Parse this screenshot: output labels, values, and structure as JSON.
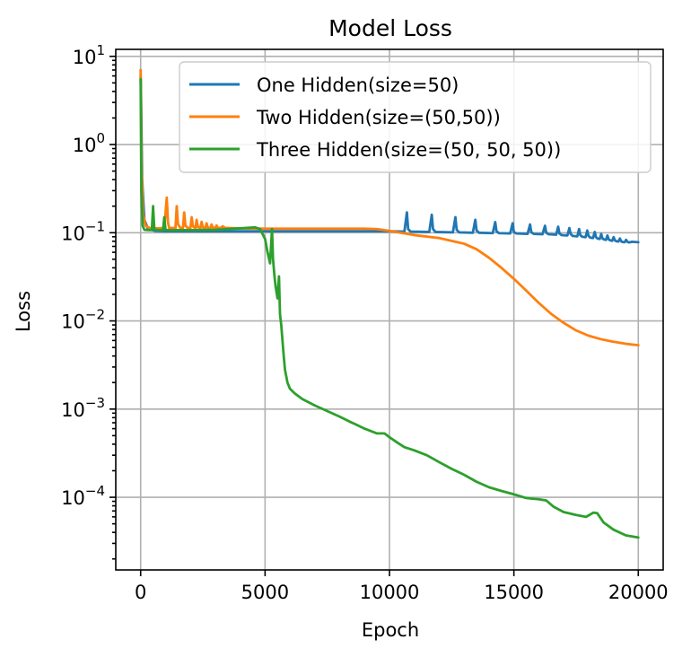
{
  "chart_data": {
    "type": "line",
    "title": "Model Loss",
    "xlabel": "Epoch",
    "ylabel": "Loss",
    "yscale": "log",
    "xlim": [
      -1000,
      21000
    ],
    "ylim": [
      1.5e-05,
      12
    ],
    "x_ticks": [
      0,
      5000,
      10000,
      15000,
      20000
    ],
    "x_tick_labels": [
      "0",
      "5000",
      "10000",
      "15000",
      "20000"
    ],
    "y_ticks": [
      10,
      1,
      0.1,
      0.01,
      0.001,
      0.0001
    ],
    "y_tick_labels": [
      {
        "base": "10",
        "exp": "1"
      },
      {
        "base": "10",
        "exp": "0"
      },
      {
        "base": "10",
        "exp": "−1"
      },
      {
        "base": "10",
        "exp": "−2"
      },
      {
        "base": "10",
        "exp": "−3"
      },
      {
        "base": "10",
        "exp": "−4"
      }
    ],
    "grid": true,
    "legend_position": "top-right",
    "series": [
      {
        "name": "One Hidden(size=50)",
        "color": "#1f77b4",
        "x": [
          0,
          20,
          60,
          150,
          300,
          600,
          1000,
          2000,
          3000,
          4000,
          5000,
          6000,
          7000,
          8000,
          9000,
          10000,
          10600,
          10700,
          10750,
          10850,
          11600,
          11700,
          11750,
          11850,
          12550,
          12650,
          12700,
          12800,
          13350,
          13450,
          13500,
          13600,
          14150,
          14250,
          14300,
          14400,
          14850,
          14950,
          15000,
          15100,
          15550,
          15650,
          15700,
          15800,
          16150,
          16250,
          16300,
          16400,
          16700,
          16780,
          16830,
          16920,
          17150,
          17230,
          17280,
          17360,
          17550,
          17620,
          17670,
          17740,
          17880,
          17950,
          18000,
          18070,
          18180,
          18250,
          18300,
          18360,
          18450,
          18510,
          18560,
          18620,
          18700,
          18760,
          18810,
          18870,
          18950,
          19010,
          19060,
          19120,
          19200,
          19260,
          19310,
          19370,
          19450,
          19510,
          19560,
          19620,
          19750,
          20000
        ],
        "y": [
          6.0,
          3.0,
          0.4,
          0.14,
          0.11,
          0.105,
          0.104,
          0.104,
          0.104,
          0.104,
          0.104,
          0.104,
          0.104,
          0.104,
          0.104,
          0.104,
          0.103,
          0.17,
          0.11,
          0.103,
          0.102,
          0.16,
          0.11,
          0.102,
          0.101,
          0.15,
          0.108,
          0.101,
          0.1,
          0.14,
          0.106,
          0.1,
          0.099,
          0.132,
          0.104,
          0.099,
          0.098,
          0.128,
          0.102,
          0.098,
          0.097,
          0.124,
          0.101,
          0.097,
          0.096,
          0.12,
          0.1,
          0.096,
          0.095,
          0.117,
          0.098,
          0.094,
          0.093,
          0.113,
          0.097,
          0.092,
          0.091,
          0.11,
          0.094,
          0.09,
          0.089,
          0.106,
          0.092,
          0.088,
          0.087,
          0.102,
          0.089,
          0.086,
          0.085,
          0.097,
          0.086,
          0.084,
          0.083,
          0.093,
          0.084,
          0.082,
          0.081,
          0.089,
          0.082,
          0.08,
          0.0795,
          0.086,
          0.08,
          0.0785,
          0.078,
          0.083,
          0.079,
          0.0775,
          0.079,
          0.078
        ]
      },
      {
        "name": "Two Hidden(size=(50,50))",
        "color": "#ff7f0e",
        "x": [
          0,
          10,
          40,
          100,
          200,
          400,
          700,
          950,
          1050,
          1100,
          1150,
          1250,
          1400,
          1450,
          1500,
          1600,
          1700,
          1750,
          1800,
          1900,
          2000,
          2050,
          2100,
          2200,
          2250,
          2300,
          2400,
          2450,
          2500,
          2600,
          2650,
          2700,
          2800,
          2850,
          2900,
          3000,
          3050,
          3100,
          3200,
          3300,
          3400,
          3500,
          4000,
          5000,
          6000,
          7000,
          8000,
          9000,
          9500,
          10000,
          11000,
          12000,
          13000,
          13500,
          14000,
          14500,
          15000,
          15500,
          16000,
          16500,
          17000,
          17500,
          18000,
          18500,
          19000,
          19500,
          20000
        ],
        "y": [
          7.0,
          3.5,
          0.5,
          0.16,
          0.12,
          0.112,
          0.112,
          0.113,
          0.25,
          0.13,
          0.113,
          0.113,
          0.113,
          0.2,
          0.125,
          0.113,
          0.113,
          0.17,
          0.12,
          0.113,
          0.113,
          0.15,
          0.118,
          0.113,
          0.14,
          0.116,
          0.113,
          0.133,
          0.115,
          0.113,
          0.128,
          0.114,
          0.113,
          0.124,
          0.114,
          0.113,
          0.121,
          0.113,
          0.113,
          0.118,
          0.113,
          0.113,
          0.112,
          0.111,
          0.111,
          0.111,
          0.111,
          0.111,
          0.11,
          0.105,
          0.094,
          0.087,
          0.075,
          0.065,
          0.052,
          0.04,
          0.03,
          0.022,
          0.016,
          0.012,
          0.0095,
          0.0078,
          0.0068,
          0.0062,
          0.0058,
          0.0055,
          0.0053
        ]
      },
      {
        "name": "Three Hidden(size=(50, 50, 50))",
        "color": "#2ca02c",
        "x": [
          0,
          10,
          30,
          80,
          150,
          300,
          450,
          500,
          550,
          650,
          900,
          950,
          1000,
          1100,
          1500,
          2000,
          3000,
          4000,
          4600,
          4800,
          5000,
          5100,
          5200,
          5280,
          5320,
          5380,
          5420,
          5500,
          5560,
          5600,
          5650,
          5700,
          5750,
          5800,
          5900,
          6000,
          6200,
          6500,
          7000,
          7500,
          8000,
          8400,
          8600,
          9000,
          9500,
          9800,
          10000,
          10300,
          10600,
          11000,
          11500,
          12000,
          12500,
          13000,
          13500,
          14000,
          14500,
          15000,
          15500,
          15800,
          16000,
          16300,
          16600,
          17000,
          17500,
          17900,
          18200,
          18350,
          18600,
          19000,
          19500,
          20000
        ],
        "y": [
          5.5,
          2.0,
          0.3,
          0.12,
          0.108,
          0.107,
          0.107,
          0.2,
          0.11,
          0.107,
          0.107,
          0.15,
          0.108,
          0.107,
          0.107,
          0.107,
          0.108,
          0.112,
          0.115,
          0.11,
          0.085,
          0.06,
          0.045,
          0.11,
          0.05,
          0.032,
          0.025,
          0.018,
          0.032,
          0.012,
          0.009,
          0.006,
          0.004,
          0.0028,
          0.002,
          0.0017,
          0.0015,
          0.0013,
          0.0011,
          0.00095,
          0.00082,
          0.00072,
          0.00068,
          0.0006,
          0.00053,
          0.00053,
          0.00048,
          0.00042,
          0.00037,
          0.00034,
          0.0003,
          0.00025,
          0.00021,
          0.00018,
          0.00015,
          0.00013,
          0.000118,
          0.000108,
          9.8e-05,
          9.6e-05,
          9.5e-05,
          9.2e-05,
          7.8e-05,
          6.8e-05,
          6.3e-05,
          6e-05,
          6.7e-05,
          6.6e-05,
          5.2e-05,
          4.3e-05,
          3.7e-05,
          3.5e-05
        ]
      }
    ]
  }
}
